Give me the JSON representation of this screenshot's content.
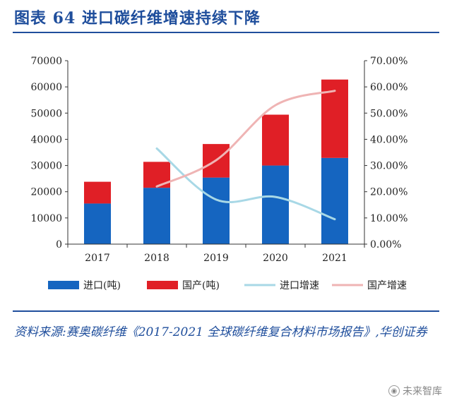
{
  "header": {
    "title": "图表 64    进口碳纤维增速持续下降"
  },
  "source": {
    "text": "资料来源:赛奥碳纤维《2017-2021 全球碳纤维复合材料市场报告》,华创证券"
  },
  "watermark": {
    "text": "未来智库",
    "icon": "camera-circle-icon"
  },
  "colors": {
    "import_bar": "#1565c0",
    "domestic_bar": "#e01f26",
    "import_growth_line": "#a8d8e6",
    "domestic_growth_line": "#efb4b4",
    "axis": "#333333"
  },
  "chart_data": {
    "type": "bar",
    "stacked": true,
    "categories": [
      "2017",
      "2018",
      "2019",
      "2020",
      "2021"
    ],
    "series": [
      {
        "name": "进口(吨)",
        "kind": "bar",
        "axis": "left",
        "values": [
          15500,
          21500,
          25400,
          30000,
          32900
        ]
      },
      {
        "name": "国产(吨)",
        "kind": "bar",
        "axis": "left",
        "values": [
          8300,
          9900,
          12800,
          19400,
          29900
        ]
      },
      {
        "name": "进口增速",
        "kind": "line",
        "axis": "right",
        "values": [
          null,
          0.365,
          0.17,
          0.18,
          0.095
        ]
      },
      {
        "name": "国产增速",
        "kind": "line",
        "axis": "right",
        "values": [
          null,
          0.22,
          0.32,
          0.53,
          0.585
        ]
      }
    ],
    "y_left": {
      "min": 0,
      "max": 70000,
      "ticks": [
        "0",
        "10000",
        "20000",
        "30000",
        "40000",
        "50000",
        "60000",
        "70000"
      ]
    },
    "y_right": {
      "min": 0,
      "max": 0.7,
      "ticks": [
        "0.00%",
        "10.00%",
        "20.00%",
        "30.00%",
        "40.00%",
        "50.00%",
        "60.00%",
        "70.00%"
      ]
    },
    "grid": false,
    "legend_position": "bottom"
  }
}
